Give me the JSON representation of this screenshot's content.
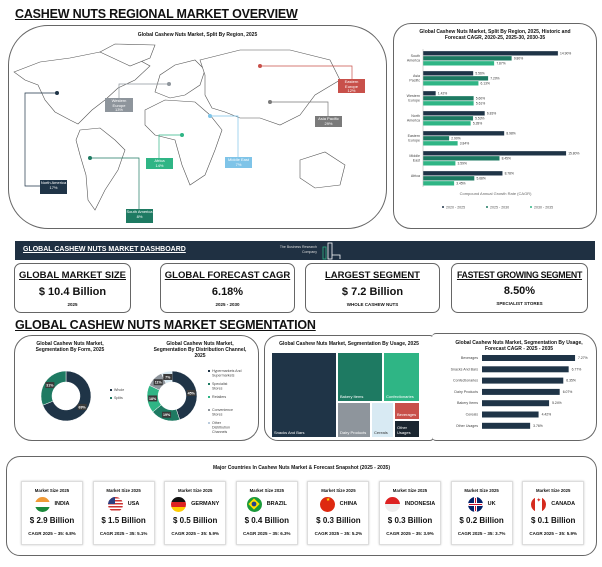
{
  "regional": {
    "title": "CASHEW NUTS REGIONAL MARKET OVERVIEW",
    "map_title": "Global Cashew Nuts Market, Split By Region, 2025",
    "regions": [
      {
        "name": "North America",
        "share": "17%",
        "color": "#1f3447"
      },
      {
        "name": "South America",
        "share": "8%",
        "color": "#1e7a62"
      },
      {
        "name": "Africa",
        "share": "14%",
        "color": "#2fb585"
      },
      {
        "name": "Middle East",
        "share": "7%",
        "color": "#7fc4e8"
      },
      {
        "name": "Western Europe",
        "share": "13%",
        "color": "#8e959c"
      },
      {
        "name": "Eastern Europe",
        "share": "12%",
        "color": "#c8504a"
      },
      {
        "name": "Asia Pacific",
        "share": "29%",
        "color": "#7a7a7a"
      }
    ]
  },
  "chart_data": [
    {
      "type": "bar",
      "orientation": "horizontal",
      "title": "Global Cashew Nuts Market, Split By Region, 2025, Historic and Forecast CAGR, 2020-25, 2025-30, 2030-35",
      "xlabel": "Compound Annual Growth Rate (CAGR)",
      "legend": "bottom",
      "categories": [
        "South America",
        "Asia Pacific",
        "Western Europe",
        "North America",
        "Eastern Europe",
        "Middle East",
        "Africa"
      ],
      "series": [
        {
          "name": "2020 - 2025",
          "color": "#1f3447",
          "values": [
            14.9,
            5.56,
            1.42,
            6.83,
            8.98,
            15.8,
            8.78
          ]
        },
        {
          "name": "2025 - 2030",
          "color": "#1e7a62",
          "values": [
            9.8,
            7.2,
            5.6,
            5.53,
            2.9,
            8.45,
            5.68
          ]
        },
        {
          "name": "2030 - 2035",
          "color": "#2fb585",
          "values": [
            7.87,
            6.13,
            5.61,
            5.28,
            3.84,
            3.59,
            3.45
          ]
        }
      ],
      "xlim": [
        0,
        16
      ]
    },
    {
      "type": "pie",
      "donut": true,
      "title": "Global Cashew Nuts Market, Segmentation By Form, 2025",
      "categories": [
        "Whole",
        "Splits"
      ],
      "values": [
        69,
        31
      ],
      "colors": [
        "#1f3447",
        "#1e7a62"
      ]
    },
    {
      "type": "pie",
      "donut": true,
      "title": "Global Cashew Nuts Market, Segmentation By Distribution Channel, 2025",
      "categories": [
        "Hypermarkets And Supermarkets",
        "Specialist Stores",
        "Retailers",
        "Convenience Stores",
        "Other Distribution Channels"
      ],
      "values": [
        45,
        19,
        18,
        11,
        7
      ],
      "colors": [
        "#1f3447",
        "#1e7a62",
        "#2fb585",
        "#8e959c",
        "#d8eaf3"
      ]
    },
    {
      "type": "treemap",
      "title": "Global Cashew Nuts Market, Segmentation By Usage, 2025",
      "categories": [
        "Snacks And Bars",
        "Bakery Items",
        "Confectionaries",
        "Dairy Products",
        "Cereals",
        "Beverages",
        "Other Usages"
      ],
      "colors": [
        "#1f3447",
        "#1e7a62",
        "#2fb585",
        "#8e959c",
        "#d8eaf3",
        "#c8504a",
        "#1a2530"
      ]
    },
    {
      "type": "bar",
      "orientation": "horizontal",
      "title": "Global Cashew Nuts Market, Segmentation By Usage, Forecast CAGR - 2025 - 2035",
      "categories": [
        "Beverages",
        "Snacks And Bars",
        "Confectionaries",
        "Dairy Products",
        "Bakery Items",
        "Cereals",
        "Other Usages"
      ],
      "values": [
        7.27,
        6.77,
        6.35,
        6.07,
        5.24,
        4.42,
        3.76
      ],
      "color": "#1f3447",
      "xlim": [
        0,
        7.5
      ]
    }
  ],
  "dashboard": {
    "title": "GLOBAL CASHEW NUTS MARKET DASHBOARD",
    "logo": "The Business Research Company",
    "cards": [
      {
        "title": "GLOBAL MARKET SIZE",
        "value": "$ 10.4 Billion",
        "sub": "2025"
      },
      {
        "title": "GLOBAL FORECAST CAGR",
        "value": "6.18%",
        "sub": "2025 - 2030"
      },
      {
        "title": "LARGEST SEGMENT",
        "value": "$ 7.2 Billion",
        "sub": "WHOLE CASHEW NUTS"
      },
      {
        "title": "FASTEST GROWING SEGMENT",
        "value": "8.50%",
        "sub": "SPECIALIST STORES"
      }
    ]
  },
  "segmentation": {
    "title": "GLOBAL CASHEW NUTS MARKET SEGMENTATION"
  },
  "countries": {
    "title": "Major Countries In Cashew Nuts Market & Forecast Snapshot (2025 - 2035)",
    "items": [
      {
        "label": "Market Size 2025",
        "name": "INDIA",
        "value": "$ 2.9 Billion",
        "cagr": "CAGR 2025 – 35: 6.8%",
        "flag": "india"
      },
      {
        "label": "Market Size 2025",
        "name": "USA",
        "value": "$ 1.5 Billion",
        "cagr": "CAGR 2025 – 35: 5.1%",
        "flag": "usa"
      },
      {
        "label": "Market Size 2025",
        "name": "GERMANY",
        "value": "$ 0.5 Billion",
        "cagr": "CAGR 2025 – 35: 5.9%",
        "flag": "germany"
      },
      {
        "label": "Market Size 2025",
        "name": "BRAZIL",
        "value": "$ 0.4 Billion",
        "cagr": "CAGR 2025 – 35: 6.3%",
        "flag": "brazil"
      },
      {
        "label": "Market Size 2025",
        "name": "CHINA",
        "value": "$ 0.3 Billion",
        "cagr": "CAGR 2025 – 35: 5.2%",
        "flag": "china"
      },
      {
        "label": "Market Size 2025",
        "name": "INDONESIA",
        "value": "$ 0.3 Billion",
        "cagr": "CAGR 2025 – 35: 3.9%",
        "flag": "indonesia"
      },
      {
        "label": "Market Size 2025",
        "name": "UK",
        "value": "$ 0.2 Billion",
        "cagr": "CAGR 2025 – 35: 3.7%",
        "flag": "uk"
      },
      {
        "label": "Market Size 2025",
        "name": "CANADA",
        "value": "$ 0.1 Billion",
        "cagr": "CAGR 2025 – 35: 5.9%",
        "flag": "canada"
      }
    ]
  }
}
